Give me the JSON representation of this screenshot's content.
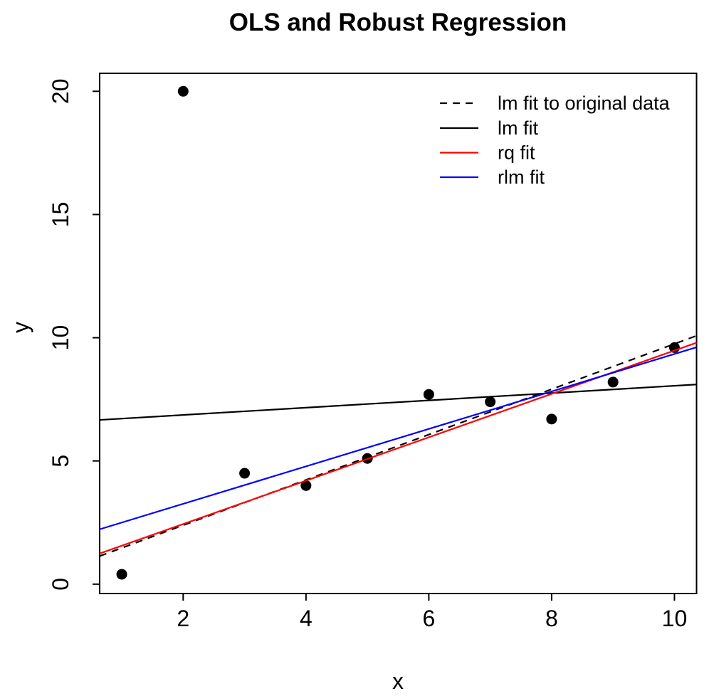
{
  "chart_data": {
    "type": "scatter",
    "title": "OLS and Robust Regression",
    "xlabel": "x",
    "ylabel": "y",
    "xlim": [
      0.64,
      10.36
    ],
    "ylim": [
      -0.38,
      20.73
    ],
    "x_ticks": [
      2,
      4,
      6,
      8,
      10
    ],
    "y_ticks": [
      0,
      5,
      10,
      15,
      20
    ],
    "grid": false,
    "background_color": "#ffffff",
    "box_color": "#000000",
    "points": {
      "marker": "filled-circle",
      "color": "#000000",
      "x": [
        1,
        2,
        3,
        4,
        5,
        6,
        7,
        8,
        9,
        10
      ],
      "y": [
        0.4,
        20,
        4.5,
        4,
        5.1,
        7.7,
        7.4,
        6.7,
        8.2,
        9.6
      ]
    },
    "series": [
      {
        "name": "lm fit to original data",
        "type": "abline",
        "intercept": 0.55,
        "slope": 0.92,
        "color": "#000000",
        "linestyle": "dashed"
      },
      {
        "name": "lm fit",
        "type": "abline",
        "intercept": 6.57,
        "slope": 0.148,
        "color": "#000000",
        "linestyle": "solid"
      },
      {
        "name": "rq fit",
        "type": "abline",
        "intercept": 0.68,
        "slope": 0.88,
        "color": "#ff0000",
        "linestyle": "solid"
      },
      {
        "name": "rlm fit",
        "type": "abline",
        "intercept": 1.74,
        "slope": 0.76,
        "color": "#0000ff",
        "linestyle": "solid"
      }
    ],
    "legend": {
      "position": "topright",
      "border": "none",
      "entries": [
        "lm fit to original data",
        "lm fit",
        "rq fit",
        "rlm fit"
      ]
    }
  }
}
